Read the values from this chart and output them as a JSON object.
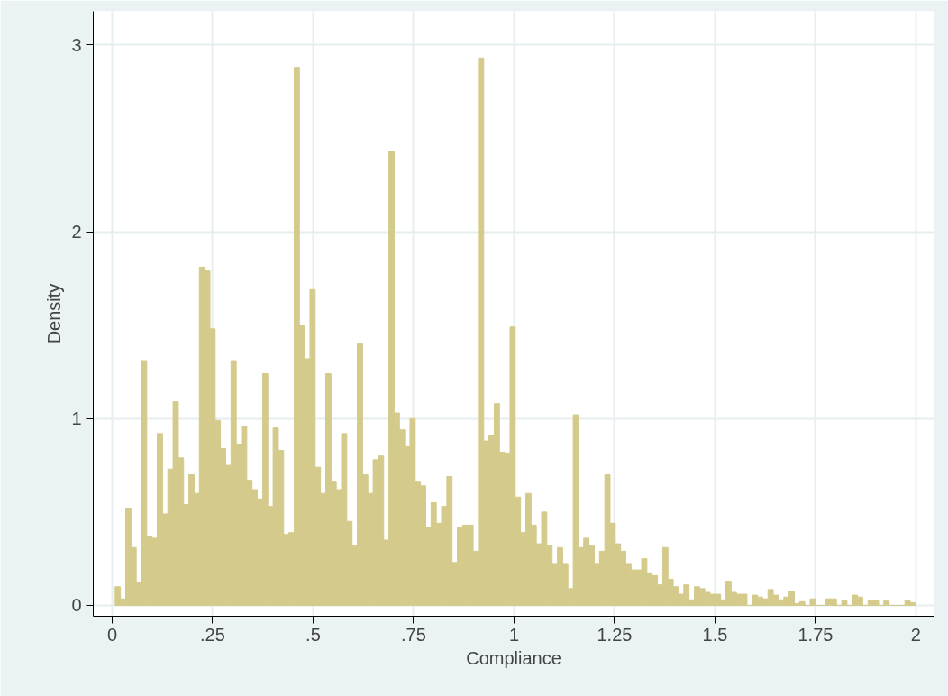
{
  "chart_data": {
    "type": "histogram",
    "xlabel": "Compliance",
    "ylabel": "Density",
    "bins": [
      0.0075,
      0.0206,
      0.0337,
      0.0468,
      0.0599,
      0.073,
      0.0861,
      0.0992,
      0.1123,
      0.1254,
      0.1385,
      0.1516,
      0.1647,
      0.1778,
      0.1909,
      0.204,
      0.2171,
      0.2302,
      0.2433,
      0.2564,
      0.2695,
      0.2826,
      0.2957,
      0.3088,
      0.3219,
      0.335,
      0.3481,
      0.3612,
      0.3743,
      0.3874,
      0.4005,
      0.4136,
      0.4267,
      0.4398,
      0.4529,
      0.466,
      0.4791,
      0.4922,
      0.5053,
      0.5184,
      0.5315,
      0.5446,
      0.5577,
      0.5708,
      0.5839,
      0.597,
      0.6101,
      0.6232,
      0.6363,
      0.6494,
      0.6625,
      0.6756,
      0.6887,
      0.7018,
      0.7149,
      0.728,
      0.7411,
      0.7542,
      0.7673,
      0.7804,
      0.7935,
      0.8066,
      0.8197,
      0.8328,
      0.8459,
      0.859,
      0.8721,
      0.8852,
      0.8983,
      0.9114,
      0.9245,
      0.9376,
      0.9507,
      0.9638,
      0.9769,
      0.99,
      1.0031,
      1.0162,
      1.0293,
      1.0424,
      1.0555,
      1.0686,
      1.0817,
      1.0948,
      1.1079,
      1.121,
      1.1341,
      1.1472,
      1.1603,
      1.1734,
      1.1865,
      1.1996,
      1.2127,
      1.2258,
      1.2389,
      1.252,
      1.2651,
      1.2782,
      1.2913,
      1.3044,
      1.3175,
      1.3306,
      1.3437,
      1.3568,
      1.3699,
      1.383,
      1.3961,
      1.4092,
      1.4223,
      1.4354,
      1.4485,
      1.4616,
      1.4747,
      1.4878,
      1.5009,
      1.514,
      1.5271,
      1.5402,
      1.5533,
      1.5664,
      1.5795,
      1.5926,
      1.6057,
      1.6188,
      1.6319,
      1.645,
      1.6581,
      1.6712,
      1.6843,
      1.6974,
      1.7105,
      1.7236,
      1.7367,
      1.7498,
      1.7629,
      1.776,
      1.7891,
      1.8022,
      1.8153,
      1.8284,
      1.8415,
      1.8546,
      1.8677,
      1.8808,
      1.8939,
      1.907,
      1.9201,
      1.9332,
      1.9463,
      1.9594,
      1.9725,
      1.9856,
      1.9987
    ],
    "values": [
      0.1,
      0.035,
      0.52,
      0.31,
      0.12,
      1.31,
      0.37,
      0.36,
      0.92,
      0.49,
      0.73,
      1.09,
      0.79,
      0.54,
      0.7,
      0.6,
      1.81,
      1.79,
      1.48,
      0.99,
      0.84,
      0.75,
      1.31,
      0.86,
      0.96,
      0.67,
      0.62,
      0.57,
      1.24,
      0.53,
      0.95,
      0.83,
      0.38,
      0.39,
      2.88,
      1.5,
      1.32,
      1.69,
      0.74,
      0.6,
      1.24,
      0.66,
      0.62,
      0.92,
      0.45,
      0.32,
      1.4,
      0.7,
      0.6,
      0.78,
      0.8,
      0.35,
      2.43,
      1.03,
      0.94,
      0.85,
      1.0,
      0.66,
      0.64,
      0.42,
      0.55,
      0.44,
      0.53,
      0.69,
      0.23,
      0.42,
      0.43,
      0.43,
      0.29,
      2.93,
      0.88,
      0.91,
      1.08,
      0.82,
      0.81,
      1.49,
      0.58,
      0.39,
      0.6,
      0.43,
      0.33,
      0.5,
      0.32,
      0.22,
      0.31,
      0.22,
      0.09,
      1.02,
      0.31,
      0.36,
      0.32,
      0.22,
      0.29,
      0.7,
      0.44,
      0.33,
      0.29,
      0.22,
      0.19,
      0.19,
      0.25,
      0.17,
      0.16,
      0.11,
      0.31,
      0.14,
      0.1,
      0.06,
      0.11,
      0.03,
      0.1,
      0.09,
      0.07,
      0.06,
      0.06,
      0.03,
      0.13,
      0.07,
      0.06,
      0.06,
      0,
      0.055,
      0.045,
      0.035,
      0.085,
      0.055,
      0.03,
      0.045,
      0.075,
      0.01,
      0.02,
      0,
      0.035,
      0,
      0,
      0.035,
      0.035,
      0,
      0.025,
      0,
      0.055,
      0.045,
      0,
      0.025,
      0.025,
      0,
      0.025,
      0,
      0,
      0,
      0.025,
      0.015
    ],
    "color": "#d4ca8c",
    "xlim": [
      -0.047,
      2.045
    ],
    "ylim": [
      -0.058,
      3.18
    ],
    "xticks": [
      0,
      {
        "value": 0.25,
        "label": ".25"
      },
      {
        "value": 0.5,
        "label": ".5"
      },
      {
        "value": 0.75,
        "label": ".75"
      },
      1,
      {
        "value": 1.25,
        "label": "1.25"
      },
      {
        "value": 1.5,
        "label": "1.5"
      },
      {
        "value": 1.75,
        "label": "1.75"
      },
      2
    ],
    "yticks": [
      0,
      1,
      2,
      3
    ],
    "grid": true
  }
}
